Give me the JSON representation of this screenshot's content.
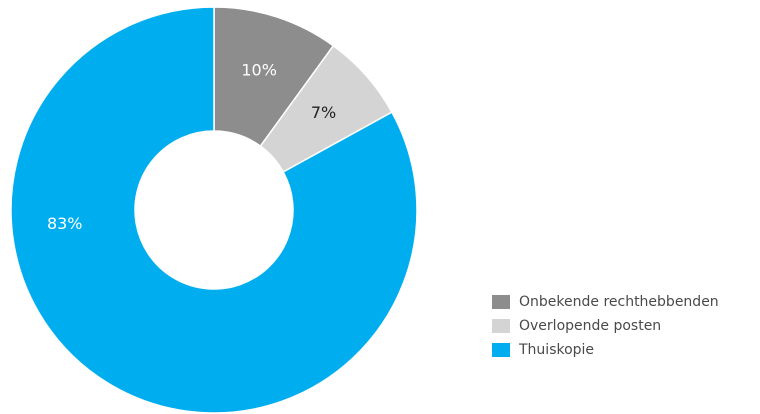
{
  "chart_data": {
    "type": "pie",
    "variant": "donut",
    "slices": [
      {
        "name": "Onbekende rechthebbenden",
        "value": 10,
        "label": "10%",
        "color": "#8d8d8d",
        "label_color": "#ffffff"
      },
      {
        "name": "Overlopende posten",
        "value": 7,
        "label": "7%",
        "color": "#d4d4d4",
        "label_color": "#222222"
      },
      {
        "name": "Thuiskopie",
        "value": 83,
        "label": "83%",
        "color": "#00aeef",
        "label_color": "#ffffff"
      }
    ],
    "legend_position": "bottom-right",
    "start_angle_deg": 0,
    "direction": "clockwise"
  },
  "legend": {
    "items": [
      {
        "label": "Onbekende rechthebbenden",
        "color": "#8d8d8d"
      },
      {
        "label": "Overlopende posten",
        "color": "#d4d4d4"
      },
      {
        "label": "Thuiskopie",
        "color": "#00aeef"
      }
    ]
  }
}
